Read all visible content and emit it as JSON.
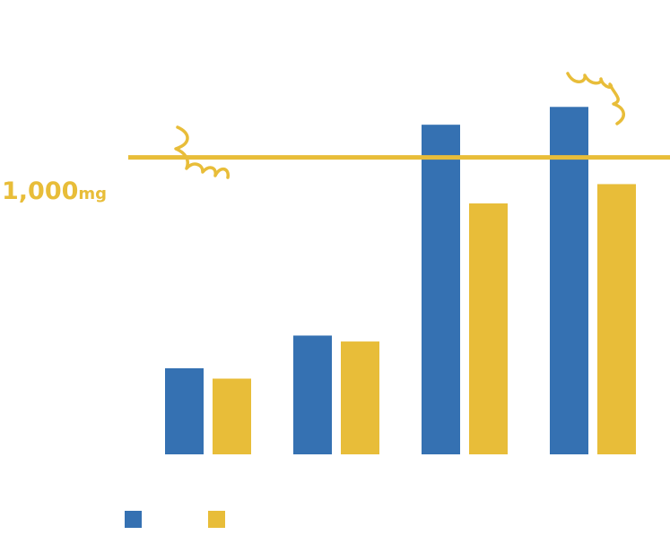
{
  "chart_data": {
    "type": "bar",
    "categories": [
      "",
      "",
      "",
      ""
    ],
    "series": [
      {
        "values": [
          290,
          400,
          1110,
          1170
        ]
      },
      {
        "values": [
          255,
          380,
          845,
          910
        ]
      }
    ],
    "reference_line": {
      "value": 1000,
      "value_text": "1,000",
      "unit": "mg"
    },
    "ylim": [
      0,
      1530
    ],
    "grid": false,
    "legend_position": "bottom-left",
    "colors": {
      "series_1": "#3571b2",
      "series_2": "#e8bd39",
      "reference_line": "#e8bd39",
      "decoration": "#e8bd39"
    },
    "decorations": [
      "squiggle-doodle",
      "squiggle-doodle"
    ]
  }
}
